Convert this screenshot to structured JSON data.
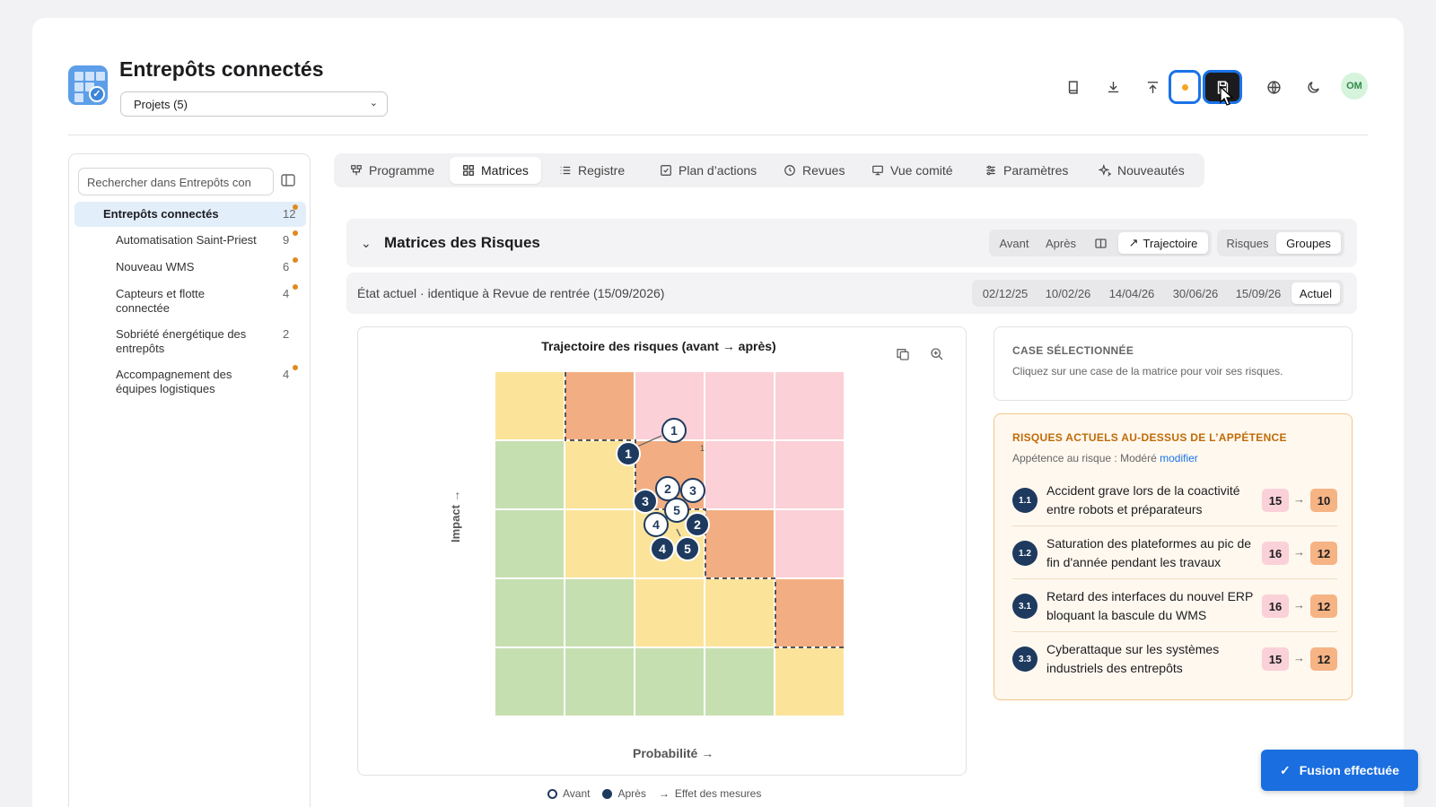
{
  "app": {
    "title": "Entrepôts connectés",
    "project_select": "Projets (5)"
  },
  "header_buttons": [
    "book-icon",
    "download-icon",
    "upload-icon",
    "unsaved-dot",
    "save-icon",
    "globe-icon",
    "moon-icon"
  ],
  "user": {
    "initials": "OM"
  },
  "sidebar": {
    "search_placeholder": "Rechercher dans Entrepôts con",
    "items": [
      {
        "label": "Entrepôts connectés",
        "count": "12",
        "dot": true
      },
      {
        "label": "Automatisation Saint-Priest",
        "count": "9",
        "dot": true
      },
      {
        "label": "Nouveau WMS",
        "count": "6",
        "dot": true
      },
      {
        "label": "Capteurs et flotte connectée",
        "count": "4",
        "dot": true
      },
      {
        "label": "Sobriété énergétique des entrepôts",
        "count": "2",
        "dot": false
      },
      {
        "label": "Accompagnement des équipes logistiques",
        "count": "4",
        "dot": true
      }
    ]
  },
  "tabs": [
    {
      "label": "Programme",
      "icon": "program-icon"
    },
    {
      "label": "Matrices",
      "icon": "grid-icon",
      "active": true
    },
    {
      "label": "Registre",
      "icon": "list-icon"
    },
    {
      "label": "Plan d’actions",
      "icon": "checkbox-icon"
    },
    {
      "label": "Revues",
      "icon": "clock-icon"
    },
    {
      "label": "Vue comité",
      "icon": "monitor-icon"
    },
    {
      "label": "Paramètres",
      "icon": "sliders-icon"
    },
    {
      "label": "Nouveautés",
      "icon": "sparkle-icon"
    }
  ],
  "section": {
    "title": "Matrices des Risques",
    "view_toggle": [
      "Avant",
      "Après",
      "split",
      "Trajectoire"
    ],
    "view_active": "Trajectoire",
    "mode_toggle": [
      "Risques",
      "Groupes"
    ],
    "mode_active": "Groupes"
  },
  "state": {
    "text": "État actuel · identique à Revue de rentrée (15/09/2026)",
    "dates": [
      "02/12/25",
      "10/02/26",
      "14/04/26",
      "30/06/26",
      "15/09/26",
      "Actuel"
    ],
    "active_date": "Actuel"
  },
  "matrix": {
    "title": "Trajectoire des risques (avant → après)",
    "x_axis": "Probabilité →",
    "y_axis": "Impact →",
    "colors": {
      "green": "#c6dfb0",
      "yellow": "#fbe49a",
      "orange": "#f2ae82",
      "pink": "#fbd0d6"
    },
    "grid": [
      [
        "yellow",
        "orange",
        "pink",
        "pink",
        "pink"
      ],
      [
        "green",
        "yellow",
        "orange",
        "pink",
        "pink"
      ],
      [
        "green",
        "yellow",
        "yellow",
        "orange",
        "pink"
      ],
      [
        "green",
        "green",
        "yellow",
        "yellow",
        "orange"
      ],
      [
        "green",
        "green",
        "green",
        "green",
        "yellow"
      ]
    ],
    "cell_count_label": "1",
    "legend": {
      "before": "Avant",
      "after": "Après",
      "effect": "Effet des mesures"
    }
  },
  "selected_cell": {
    "title": "CASE SÉLECTIONNÉE",
    "hint": "Cliquez sur une case de la matrice pour voir ses risques."
  },
  "appetite": {
    "title": "RISQUES ACTUELS AU-DESSUS DE L’APPÉTENCE",
    "subtitle": "Appétence au risque : Modéré",
    "modify_link": "modifier",
    "risks": [
      {
        "id": "1.1",
        "text": "Accident grave lors de la coactivité entre robots et préparateurs",
        "before": "15",
        "after": "10"
      },
      {
        "id": "1.2",
        "text": "Saturation des plateformes au pic de fin d'année pendant les travaux",
        "before": "16",
        "after": "12"
      },
      {
        "id": "3.1",
        "text": "Retard des interfaces du nouvel ERP bloquant la bascule du WMS",
        "before": "16",
        "after": "12"
      },
      {
        "id": "3.3",
        "text": "Cyberattaque sur les systèmes industriels des entrepôts",
        "before": "15",
        "after": "12"
      }
    ]
  },
  "toast": {
    "text": "Fusion effectuée"
  }
}
